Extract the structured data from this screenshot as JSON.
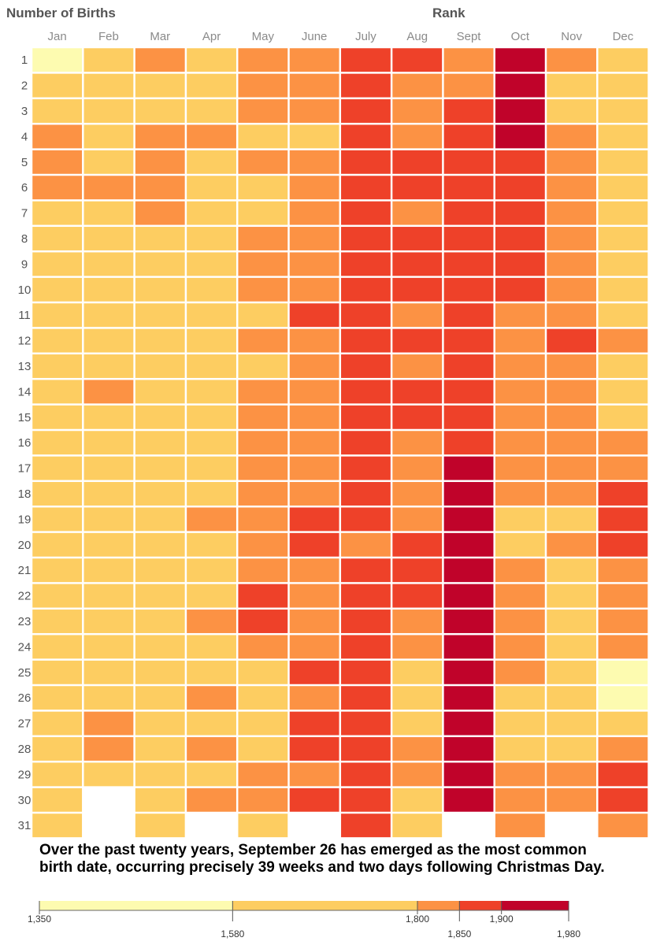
{
  "chart_data": {
    "type": "heatmap",
    "title_left": "Number of Births",
    "title_right": "Rank",
    "x_categories": [
      "Jan",
      "Feb",
      "Mar",
      "Apr",
      "May",
      "June",
      "July",
      "Aug",
      "Sept",
      "Oct",
      "Nov",
      "Dec"
    ],
    "y_categories": [
      1,
      2,
      3,
      4,
      5,
      6,
      7,
      8,
      9,
      10,
      11,
      12,
      13,
      14,
      15,
      16,
      17,
      18,
      19,
      20,
      21,
      22,
      23,
      24,
      25,
      26,
      27,
      28,
      29,
      30,
      31
    ],
    "value_note": "values are color bin levels: 0 = 1,350-1,580; 1 = 1,580-1,800; 2 = 1,800-1,850; 3 = 1,850-1,900; 4 = 1,900-1,980; null = no such date",
    "bins": [
      {
        "min": 1350,
        "max": 1580,
        "color": "#fdfbb0"
      },
      {
        "min": 1580,
        "max": 1800,
        "color": "#fdcd61"
      },
      {
        "min": 1800,
        "max": 1850,
        "color": "#fc9244"
      },
      {
        "min": 1850,
        "max": 1900,
        "color": "#ee4129"
      },
      {
        "min": 1900,
        "max": 1980,
        "color": "#c0032a"
      }
    ],
    "legend_ticks": [
      "1,350",
      "1,580",
      "1,800",
      "1,850",
      "1,900",
      "1,980"
    ],
    "columns": [
      [
        0,
        1,
        1,
        2,
        2,
        2,
        1,
        1,
        1,
        1,
        1,
        1,
        1,
        1,
        1,
        1,
        1,
        1,
        1,
        1,
        1,
        1,
        1,
        1,
        1,
        1,
        1,
        1,
        1,
        1,
        1
      ],
      [
        1,
        1,
        1,
        1,
        1,
        2,
        1,
        1,
        1,
        1,
        1,
        1,
        1,
        2,
        1,
        1,
        1,
        1,
        1,
        1,
        1,
        1,
        1,
        1,
        1,
        1,
        2,
        2,
        1,
        null,
        null
      ],
      [
        2,
        1,
        1,
        2,
        2,
        2,
        2,
        1,
        1,
        1,
        1,
        1,
        1,
        1,
        1,
        1,
        1,
        1,
        1,
        1,
        1,
        1,
        1,
        1,
        1,
        1,
        1,
        1,
        1,
        1,
        1
      ],
      [
        1,
        1,
        1,
        2,
        1,
        1,
        1,
        1,
        1,
        1,
        1,
        1,
        1,
        1,
        1,
        1,
        1,
        1,
        2,
        1,
        1,
        1,
        2,
        1,
        1,
        2,
        1,
        2,
        1,
        2,
        null
      ],
      [
        2,
        2,
        2,
        1,
        2,
        1,
        1,
        2,
        2,
        2,
        1,
        2,
        1,
        2,
        2,
        2,
        2,
        2,
        2,
        2,
        2,
        3,
        3,
        2,
        1,
        1,
        1,
        1,
        2,
        2,
        1
      ],
      [
        2,
        2,
        2,
        1,
        2,
        2,
        2,
        2,
        2,
        2,
        3,
        2,
        2,
        2,
        2,
        2,
        2,
        2,
        3,
        3,
        2,
        2,
        2,
        2,
        3,
        2,
        3,
        3,
        2,
        3,
        null
      ],
      [
        3,
        3,
        3,
        3,
        3,
        3,
        3,
        3,
        3,
        3,
        3,
        3,
        3,
        3,
        3,
        3,
        3,
        3,
        3,
        2,
        3,
        3,
        3,
        3,
        3,
        3,
        3,
        3,
        3,
        3,
        3
      ],
      [
        3,
        2,
        2,
        2,
        3,
        3,
        2,
        3,
        3,
        3,
        2,
        3,
        2,
        3,
        3,
        2,
        2,
        2,
        2,
        3,
        3,
        3,
        2,
        2,
        1,
        1,
        1,
        2,
        2,
        1,
        1
      ],
      [
        2,
        2,
        3,
        3,
        3,
        3,
        3,
        3,
        3,
        3,
        3,
        3,
        3,
        3,
        3,
        3,
        4,
        4,
        4,
        4,
        4,
        4,
        4,
        4,
        4,
        4,
        4,
        4,
        4,
        4,
        null
      ],
      [
        4,
        4,
        4,
        4,
        3,
        3,
        3,
        3,
        3,
        3,
        2,
        2,
        2,
        2,
        2,
        2,
        2,
        2,
        1,
        1,
        2,
        2,
        2,
        2,
        2,
        1,
        1,
        1,
        2,
        2,
        2
      ],
      [
        2,
        1,
        1,
        2,
        2,
        2,
        2,
        2,
        2,
        2,
        2,
        3,
        2,
        2,
        2,
        2,
        2,
        2,
        1,
        2,
        1,
        1,
        1,
        1,
        1,
        1,
        1,
        1,
        2,
        2,
        null
      ],
      [
        1,
        1,
        1,
        1,
        1,
        1,
        1,
        1,
        1,
        1,
        1,
        2,
        1,
        1,
        1,
        2,
        2,
        3,
        3,
        3,
        2,
        2,
        2,
        2,
        0,
        0,
        1,
        2,
        3,
        3,
        2
      ]
    ]
  }
}
